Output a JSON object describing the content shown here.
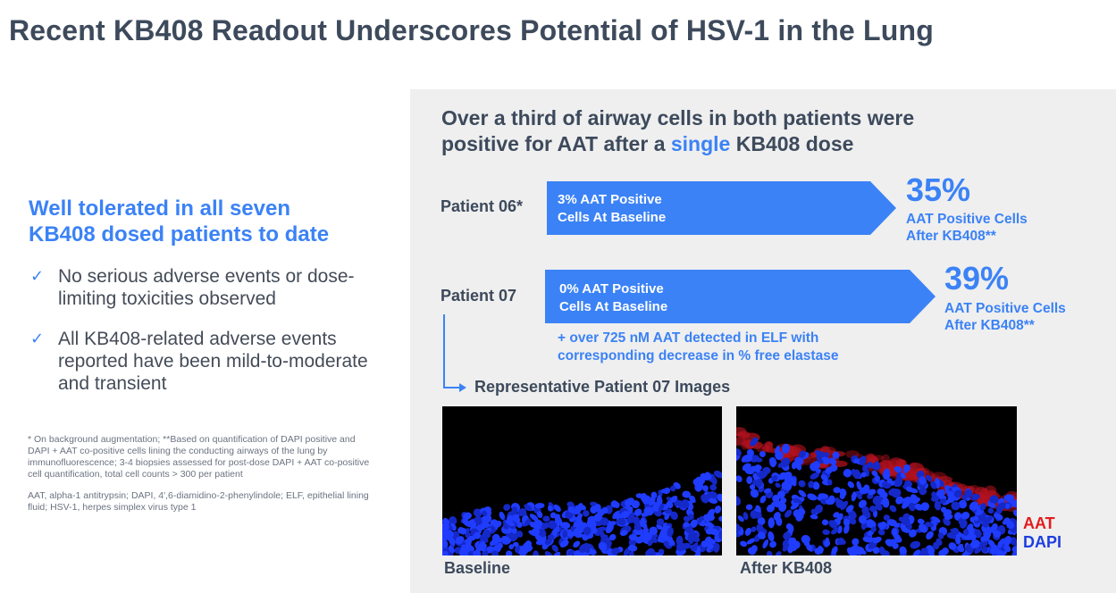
{
  "title": "Recent KB408 Readout Underscores Potential of HSV-1 in the Lung",
  "left": {
    "heading_line1": "Well tolerated in all seven",
    "heading_line2": "KB408 dosed patients to date",
    "bullets": [
      {
        "icon": "check-icon",
        "text": "No serious adverse events or dose-limiting toxicities observed"
      },
      {
        "icon": "check-icon",
        "text": "All KB408-related adverse events reported have been mild-to-moderate and transient"
      }
    ],
    "footnote1": "* On background augmentation; **Based on quantification of DAPI positive and DAPI + AAT co-positive cells lining the conducting airways of the lung by immunofluorescence; 3-4 biopsies assessed for post-dose DAPI + AAT co-positive cell quantification, total cell counts > 300 per patient",
    "footnote2": "AAT, alpha-1 antitrypsin; DAPI, 4',6-diamidino-2-phenylindole; ELF, epithelial lining fluid; HSV-1, herpes simplex virus type 1"
  },
  "panel": {
    "heading_part1": "Over a third of airway cells in both patients were",
    "heading_part2": "positive for AAT after a ",
    "heading_highlight": "single",
    "heading_part3": " KB408 dose",
    "patients": [
      {
        "name": "Patient 06*",
        "baseline_line1": "3%  AAT Positive",
        "baseline_line2": "Cells At Baseline",
        "result": "35%",
        "result_line1": "AAT Positive Cells",
        "result_line2": "After KB408**"
      },
      {
        "name": "Patient 07",
        "baseline_line1": "0%  AAT Positive",
        "baseline_line2": "Cells At Baseline",
        "result": "39%",
        "result_line1": "AAT Positive Cells",
        "result_line2": "After KB408**"
      }
    ],
    "elf_line1": "+ over 725 nM AAT detected in ELF with",
    "elf_line2": "corresponding decrease in % free elastase",
    "images_label": "Representative Patient 07 Images",
    "images": [
      {
        "caption": "Baseline"
      },
      {
        "caption": "After KB408"
      }
    ],
    "legend": {
      "aat": "AAT",
      "dapi": "DAPI"
    }
  },
  "colors": {
    "accent": "#3b82f6",
    "title": "#3d4a5c",
    "panel_bg": "#efefef",
    "aat": "#e11d1d",
    "dapi": "#1d3ee1"
  }
}
